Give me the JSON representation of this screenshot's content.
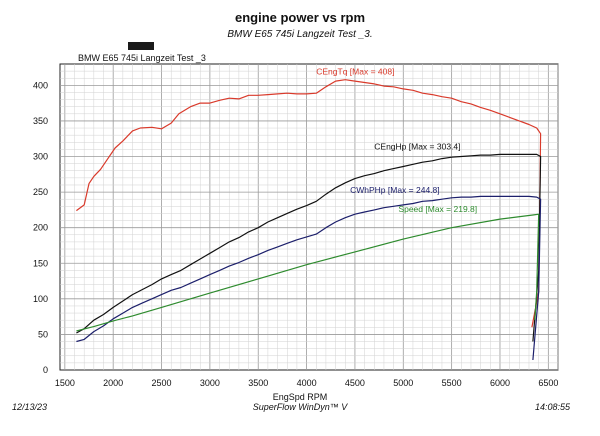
{
  "header": {
    "title": "engine power vs rpm",
    "subtitle": "BMW E65 745i Langzeit Test _3."
  },
  "footer": {
    "date": "12/13/23",
    "software": "SuperFlow WinDyn™ V",
    "time": "14:08:55"
  },
  "chart_data": {
    "type": "line",
    "legend_title": "BMW E65 745i Langzeit Test _3",
    "xlabel": "EngSpd RPM",
    "ylabel": "",
    "xlim": [
      1450,
      6600
    ],
    "ylim": [
      0,
      430
    ],
    "xticks": [
      1500,
      2000,
      2500,
      3000,
      3500,
      4000,
      4500,
      5000,
      5500,
      6000,
      6500
    ],
    "yticks": [
      0,
      50,
      100,
      150,
      200,
      250,
      300,
      350,
      400
    ],
    "grid": true,
    "series": [
      {
        "name": "CEngTq",
        "label": "CEngTq [Max = 408]",
        "color": "#d93a2b",
        "x": [
          1620,
          1700,
          1750,
          1800,
          1870,
          1950,
          2020,
          2100,
          2200,
          2280,
          2400,
          2500,
          2600,
          2680,
          2800,
          2900,
          3000,
          3100,
          3200,
          3300,
          3400,
          3500,
          3600,
          3700,
          3800,
          3900,
          4000,
          4100,
          4200,
          4300,
          4400,
          4500,
          4600,
          4700,
          4800,
          4900,
          5000,
          5100,
          5200,
          5300,
          5400,
          5500,
          5600,
          5700,
          5800,
          5900,
          6000,
          6100,
          6200,
          6300,
          6380,
          6420,
          6400,
          6330
        ],
        "y": [
          224,
          232,
          262,
          272,
          282,
          298,
          312,
          322,
          336,
          340,
          341,
          339,
          347,
          360,
          370,
          375,
          375,
          379,
          382,
          381,
          386,
          386,
          387,
          388,
          389,
          388,
          388,
          389,
          398,
          406,
          408,
          406,
          404,
          402,
          399,
          398,
          395,
          393,
          389,
          387,
          384,
          382,
          377,
          374,
          369,
          365,
          360,
          355,
          350,
          345,
          340,
          332,
          110,
          60
        ]
      },
      {
        "name": "CEngHp",
        "label": "CEngHp [Max = 303.4]",
        "color": "#111111",
        "x": [
          1620,
          1700,
          1800,
          1900,
          2000,
          2100,
          2200,
          2300,
          2400,
          2500,
          2600,
          2700,
          2800,
          2900,
          3000,
          3100,
          3200,
          3300,
          3400,
          3500,
          3600,
          3700,
          3800,
          3900,
          4000,
          4100,
          4200,
          4300,
          4400,
          4500,
          4600,
          4700,
          4800,
          4900,
          5000,
          5100,
          5200,
          5300,
          5400,
          5500,
          5600,
          5700,
          5800,
          5900,
          6000,
          6100,
          6200,
          6300,
          6380,
          6420,
          6400,
          6340
        ],
        "y": [
          52,
          58,
          70,
          78,
          88,
          97,
          106,
          113,
          120,
          128,
          134,
          140,
          148,
          156,
          164,
          172,
          180,
          186,
          194,
          200,
          208,
          214,
          220,
          226,
          231,
          237,
          247,
          256,
          263,
          269,
          273,
          276,
          280,
          283,
          286,
          289,
          292,
          294,
          297,
          299,
          300,
          301,
          302,
          302,
          303,
          303,
          303,
          303,
          303,
          300,
          140,
          40
        ]
      },
      {
        "name": "CWhPHp",
        "label": "CWhPHp [Max = 244.8]",
        "color": "#1c1f6b",
        "x": [
          1620,
          1700,
          1800,
          1900,
          2000,
          2100,
          2200,
          2300,
          2400,
          2500,
          2600,
          2700,
          2800,
          2900,
          3000,
          3100,
          3200,
          3300,
          3400,
          3500,
          3600,
          3700,
          3800,
          3900,
          4000,
          4100,
          4200,
          4300,
          4400,
          4500,
          4600,
          4700,
          4800,
          4900,
          5000,
          5100,
          5200,
          5300,
          5400,
          5500,
          5600,
          5700,
          5800,
          5900,
          6000,
          6100,
          6200,
          6300,
          6380,
          6420,
          6400,
          6340
        ],
        "y": [
          40,
          43,
          54,
          62,
          72,
          80,
          88,
          94,
          100,
          106,
          112,
          116,
          122,
          128,
          134,
          140,
          146,
          151,
          157,
          162,
          168,
          173,
          178,
          183,
          187,
          191,
          200,
          208,
          214,
          219,
          222,
          225,
          228,
          230,
          232,
          234,
          237,
          238,
          240,
          242,
          243,
          243,
          244,
          244,
          244,
          244,
          244,
          244,
          243,
          240,
          110,
          14
        ]
      },
      {
        "name": "Speed",
        "label": "Speed  [Max = 219.8]",
        "color": "#2e8b2e",
        "x": [
          1620,
          1800,
          2000,
          2200,
          2500,
          3000,
          3500,
          4000,
          4500,
          5000,
          5500,
          6000,
          6350,
          6400,
          6380,
          6360
        ],
        "y": [
          55,
          61,
          69,
          76,
          88,
          108,
          128,
          148,
          166,
          184,
          200,
          212,
          218,
          219,
          110,
          70
        ]
      }
    ]
  }
}
